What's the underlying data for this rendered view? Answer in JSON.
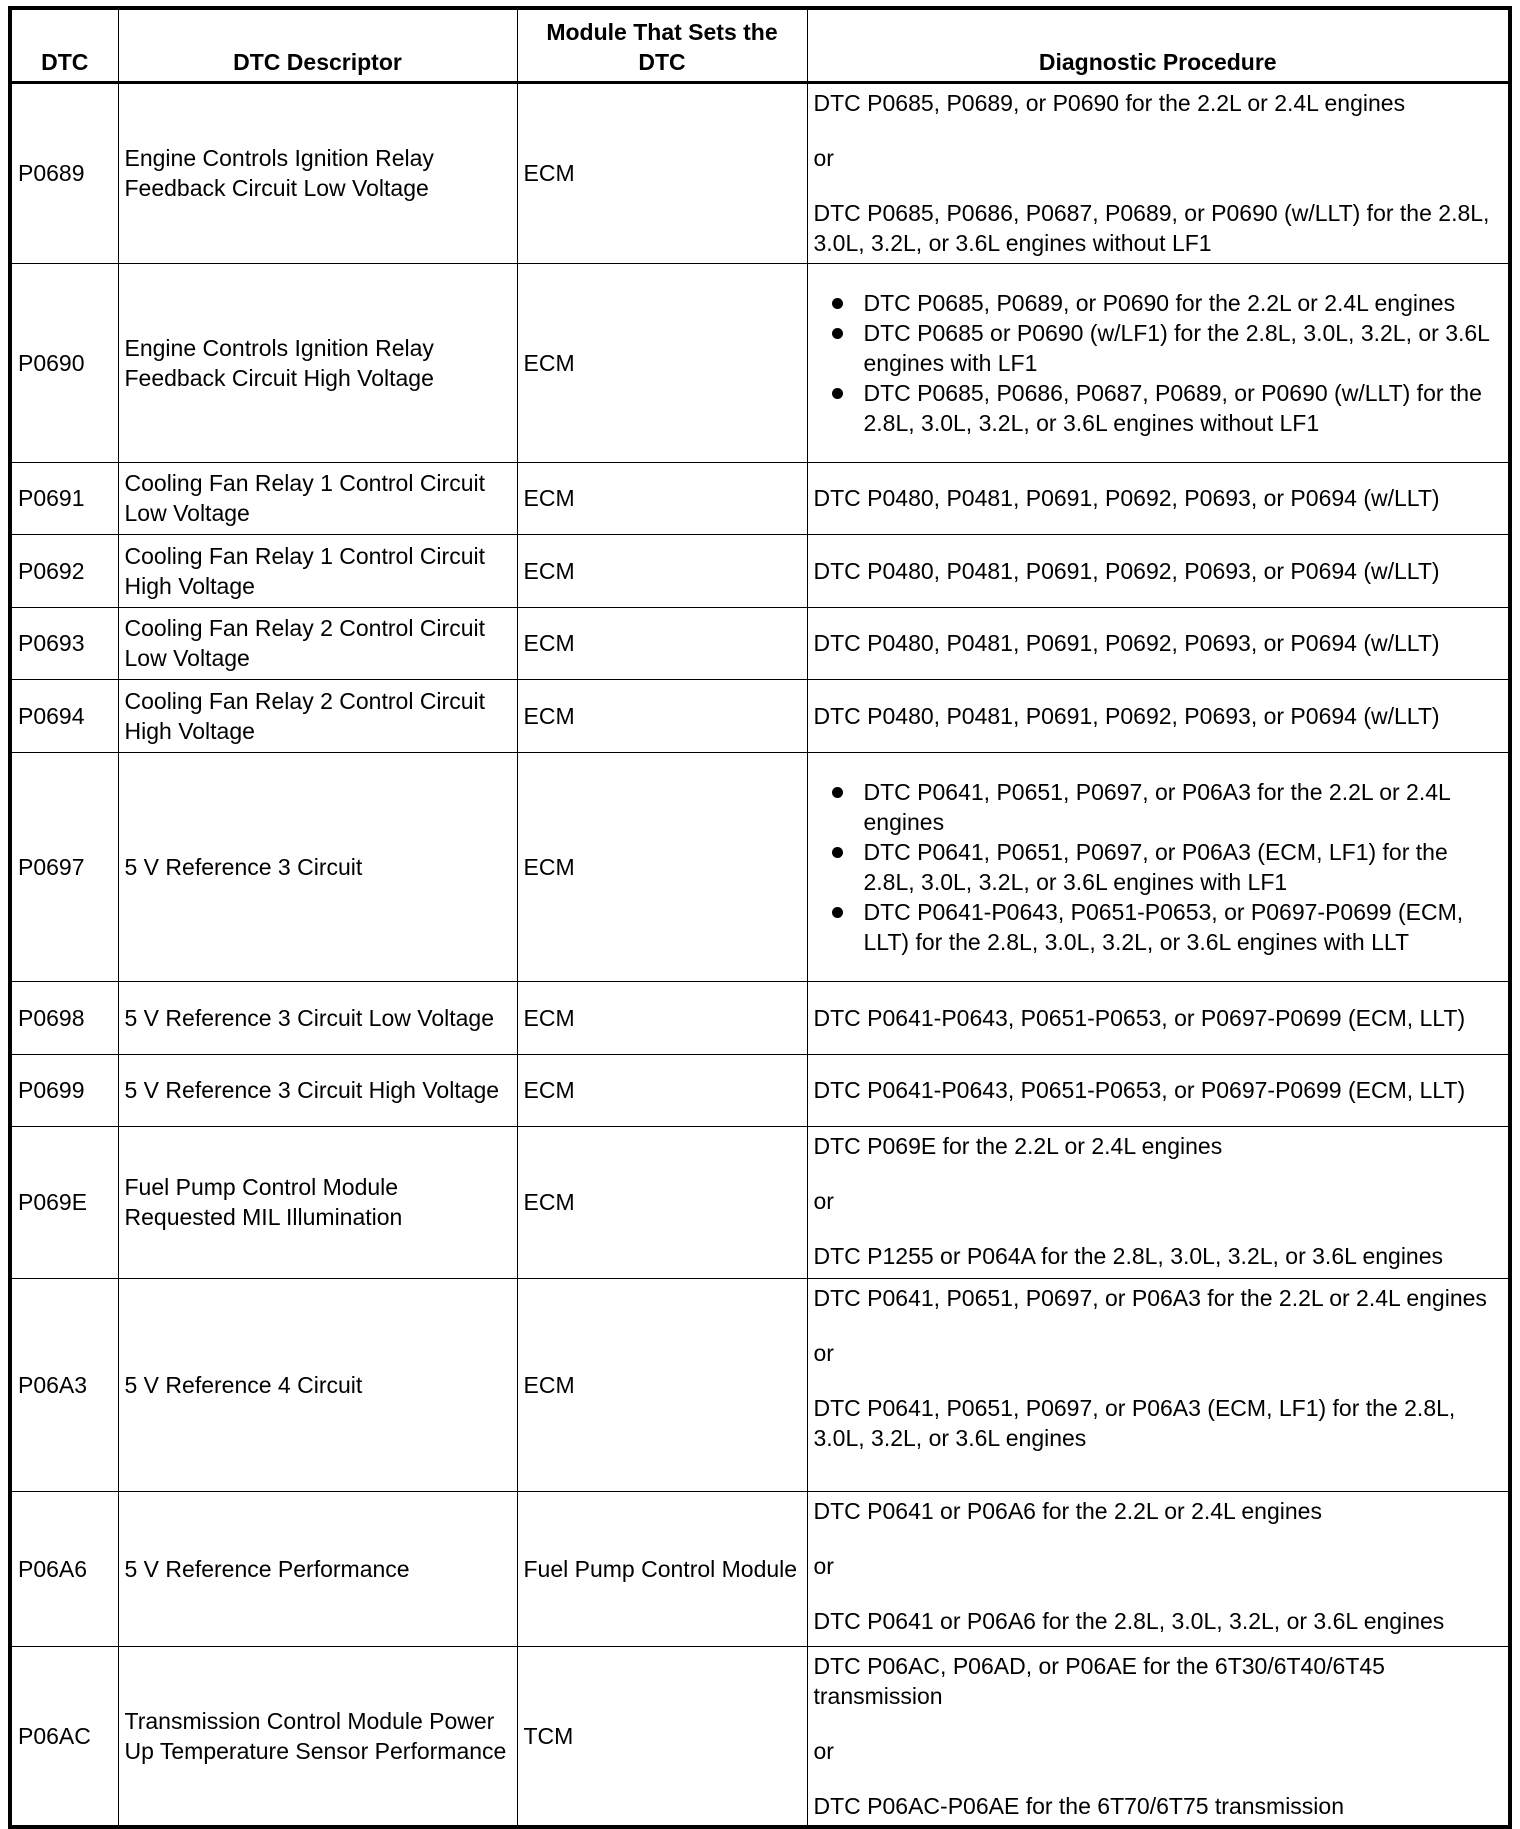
{
  "headers": [
    "DTC",
    "DTC Descriptor",
    "Module That Sets the DTC",
    "Diagnostic Procedure"
  ],
  "rows": [
    {
      "dtc": "P0689",
      "descriptor": "Engine Controls Ignition Relay Feedback Circuit Low Voltage",
      "module": "ECM",
      "procedure": {
        "type": "or",
        "items": [
          "DTC P0685, P0689, or P0690 for the 2.2L or 2.4L engines",
          "or",
          "DTC P0685, P0686, P0687, P0689, or P0690 (w/LLT) for the 2.8L, 3.0L, 3.2L, or 3.6L engines without LF1"
        ]
      }
    },
    {
      "dtc": "P0690",
      "descriptor": "Engine Controls Ignition Relay Feedback Circuit High Voltage",
      "module": "ECM",
      "procedure": {
        "type": "bullets",
        "items": [
          "DTC P0685, P0689, or P0690 for the 2.2L or 2.4L engines",
          "DTC P0685 or P0690 (w/LF1) for the 2.8L, 3.0L, 3.2L, or 3.6L engines with LF1",
          "DTC P0685, P0686, P0687, P0689, or P0690 (w/LLT) for the 2.8L, 3.0L, 3.2L, or 3.6L engines without LF1"
        ]
      }
    },
    {
      "dtc": "P0691",
      "descriptor": "Cooling Fan Relay 1 Control Circuit Low Voltage",
      "module": "ECM",
      "procedure": {
        "type": "text",
        "items": [
          "DTC P0480, P0481, P0691, P0692, P0693, or P0694 (w/LLT)"
        ]
      }
    },
    {
      "dtc": "P0692",
      "descriptor": "Cooling Fan Relay 1 Control Circuit High Voltage",
      "module": "ECM",
      "procedure": {
        "type": "text",
        "items": [
          "DTC P0480, P0481, P0691, P0692, P0693, or P0694 (w/LLT)"
        ]
      }
    },
    {
      "dtc": "P0693",
      "descriptor": "Cooling Fan Relay 2 Control Circuit Low Voltage",
      "module": "ECM",
      "procedure": {
        "type": "text",
        "items": [
          "DTC P0480, P0481, P0691, P0692, P0693, or P0694 (w/LLT)"
        ]
      }
    },
    {
      "dtc": "P0694",
      "descriptor": "Cooling Fan Relay 2 Control Circuit High Voltage",
      "module": "ECM",
      "procedure": {
        "type": "text",
        "items": [
          "DTC P0480, P0481, P0691, P0692, P0693, or P0694 (w/LLT)"
        ]
      }
    },
    {
      "dtc": "P0697",
      "descriptor": "5 V Reference 3 Circuit",
      "module": "ECM",
      "procedure": {
        "type": "bullets",
        "items": [
          "DTC P0641, P0651, P0697, or P06A3 for the 2.2L or 2.4L engines",
          "DTC P0641, P0651, P0697, or P06A3 (ECM, LF1) for the 2.8L, 3.0L, 3.2L, or 3.6L engines with LF1",
          "DTC P0641-P0643, P0651-P0653, or P0697-P0699 (ECM, LLT) for the 2.8L, 3.0L, 3.2L, or 3.6L engines with LLT"
        ]
      }
    },
    {
      "dtc": "P0698",
      "descriptor": "5 V Reference 3 Circuit Low Voltage",
      "module": "ECM",
      "procedure": {
        "type": "text",
        "items": [
          "DTC P0641-P0643, P0651-P0653, or P0697-P0699 (ECM, LLT)"
        ]
      }
    },
    {
      "dtc": "P0699",
      "descriptor": "5 V Reference 3 Circuit High Voltage",
      "module": "ECM",
      "procedure": {
        "type": "text",
        "items": [
          "DTC P0641-P0643, P0651-P0653, or P0697-P0699 (ECM, LLT)"
        ]
      }
    },
    {
      "dtc": "P069E",
      "descriptor": "Fuel Pump Control Module Requested MIL Illumination",
      "module": "ECM",
      "procedure": {
        "type": "or",
        "items": [
          "DTC P069E for the 2.2L or 2.4L engines",
          "or",
          "DTC P1255 or P064A for the 2.8L, 3.0L, 3.2L, or 3.6L engines"
        ]
      }
    },
    {
      "dtc": "P06A3",
      "descriptor": "5 V Reference 4 Circuit",
      "module": "ECM",
      "procedure": {
        "type": "or",
        "items": [
          "DTC P0641, P0651, P0697, or P06A3 for the 2.2L or 2.4L engines",
          "or",
          "DTC P0641, P0651, P0697, or P06A3 (ECM, LF1) for the 2.8L, 3.0L, 3.2L, or 3.6L engines"
        ]
      }
    },
    {
      "dtc": "P06A6",
      "descriptor": "5 V Reference Performance",
      "module": "Fuel Pump Control Module",
      "procedure": {
        "type": "or",
        "items": [
          "DTC P0641 or P06A6 for the 2.2L or 2.4L engines",
          "or",
          "DTC P0641 or P06A6 for the 2.8L, 3.0L, 3.2L, or 3.6L engines"
        ]
      }
    },
    {
      "dtc": "P06AC",
      "descriptor": "Transmission Control Module Power Up Temperature Sensor Performance",
      "module": "TCM",
      "procedure": {
        "type": "or",
        "items": [
          "DTC P06AC, P06AD, or P06AE for the 6T30/6T40/6T45 transmission",
          "or",
          "DTC P06AC-P06AE for the 6T70/6T75 transmission"
        ]
      }
    }
  ]
}
